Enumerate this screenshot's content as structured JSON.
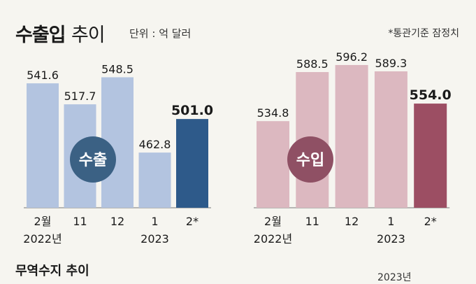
{
  "header": {
    "title_bold": "수출입",
    "title_light": "추이",
    "unit": "단위 : 억 달러",
    "note": "*통관기준 잠정치"
  },
  "chart_data": [
    {
      "type": "bar",
      "badge": "수출",
      "categories": [
        "2월\n2022년",
        "11",
        "12",
        "1\n2023",
        "2*"
      ],
      "values": [
        541.6,
        517.7,
        548.5,
        462.8,
        501.0
      ],
      "value_labels": [
        "541.6",
        "517.7",
        "548.5",
        "462.8",
        "501.0"
      ],
      "highlight_index": 4,
      "ylim": [
        400,
        560
      ],
      "colors": {
        "bar": "#b3c4e0",
        "highlight": "#2e5a8a",
        "badge": "#3b6184"
      }
    },
    {
      "type": "bar",
      "badge": "수입",
      "categories": [
        "2월\n2022년",
        "11",
        "12",
        "1\n2023",
        "2*"
      ],
      "values": [
        534.8,
        588.5,
        596.2,
        589.3,
        554.0
      ],
      "value_labels": [
        "534.8",
        "588.5",
        "596.2",
        "589.3",
        "554.0"
      ],
      "highlight_index": 4,
      "ylim": [
        440,
        600
      ],
      "colors": {
        "bar": "#dcb8c0",
        "highlight": "#9c4e63",
        "badge": "#8f5064"
      }
    }
  ],
  "footer": {
    "subtitle": "무역수지 추이",
    "year": "2023년"
  }
}
